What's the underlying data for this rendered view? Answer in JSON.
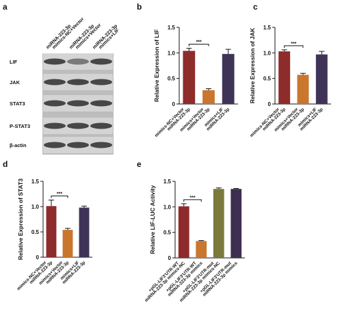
{
  "blot": {
    "label": "a",
    "columns": [
      [
        "miRNA-223-3p",
        "mimics-NC+Vector"
      ],
      [
        "miRNA-223-3p",
        "mimics+Vector"
      ],
      [
        "miRNA-223-3p",
        "mimics+LIF"
      ]
    ],
    "rows": [
      "LIF",
      "JAK",
      "STAT3",
      "P-STAT3",
      "β-actin"
    ]
  },
  "chart_data": [
    {
      "type": "bar",
      "label": "b",
      "ylabel": "Relative Expression of LIF",
      "categories": [
        [
          "miRNA-223-3p",
          "mimics-NC+Vector"
        ],
        [
          "miRNA-223-3p",
          "mimics+Vector"
        ],
        [
          "miRNA-223-3p",
          "mimics+LIF"
        ]
      ],
      "values": [
        1.04,
        0.27,
        0.98
      ],
      "errors": [
        0.05,
        0.03,
        0.09
      ],
      "colors": [
        "#8e2c2c",
        "#c9762f",
        "#3f3458"
      ],
      "annotation": "***",
      "ylim": [
        0,
        1.5
      ],
      "yticks": [
        0,
        0.5,
        {
          "value": 1,
          "label": "1.0"
        },
        1.5
      ]
    },
    {
      "type": "bar",
      "label": "c",
      "ylabel": "Relative Expression of JAK",
      "categories": [
        [
          "miRNA-223-3p",
          "mimics-NC+Vector"
        ],
        [
          "miRNA-223-3p",
          "mimics+Vector"
        ],
        [
          "miRNA-223-3p",
          "mimics+LIF"
        ]
      ],
      "values": [
        1.03,
        0.57,
        0.97
      ],
      "errors": [
        0.03,
        0.03,
        0.06
      ],
      "colors": [
        "#8e2c2c",
        "#c9762f",
        "#3f3458"
      ],
      "annotation": "***",
      "ylim": [
        0,
        1.5
      ],
      "yticks": [
        0,
        0.5,
        {
          "value": 1,
          "label": "1.0"
        },
        1.5
      ]
    },
    {
      "type": "bar",
      "label": "d",
      "ylabel": "Relative Expression of STAT3",
      "categories": [
        [
          "miRNA-223-3p",
          "mimics-NC+Vector"
        ],
        [
          "miRNA-223-3p",
          "mimics+Vector"
        ],
        [
          "miRNA-223-3p",
          "mimics+LIF"
        ]
      ],
      "values": [
        1.01,
        0.54,
        0.98
      ],
      "errors": [
        0.12,
        0.03,
        0.03
      ],
      "colors": [
        "#8e2c2c",
        "#c9762f",
        "#3f3458"
      ],
      "annotation": "***",
      "ylim": [
        0,
        1.5
      ],
      "yticks": [
        0,
        0.5,
        {
          "value": 1,
          "label": "1.0"
        },
        1.5
      ]
    },
    {
      "type": "bar",
      "label": "e",
      "ylabel": "Relative LIF-LUC Activity",
      "categories": [
        [
          "miRNA-223-3p mimics-NC",
          "+pGL-LIF3'UTR-WT"
        ],
        [
          "miRNA-223-3p mimics",
          "+pGL-LIF3'UTR-WT"
        ],
        [
          "miRNA-223-3p mimics-NC",
          "+pGL-LIF3'UTR-mut"
        ],
        [
          "miRNA-223-3p mimics",
          "+pGL-LIF3'UTR-mut"
        ]
      ],
      "values": [
        1.01,
        0.33,
        1.35,
        1.35
      ],
      "errors": [
        0.05,
        0.01,
        0.02,
        0.01
      ],
      "colors": [
        "#8e2c2c",
        "#c9762f",
        "#7b7a3c",
        "#3d2e52"
      ],
      "annotation": "***",
      "ylim": [
        0,
        1.5
      ],
      "yticks": [
        0,
        0.5,
        {
          "value": 1,
          "label": "1.0"
        },
        1.5
      ]
    }
  ]
}
